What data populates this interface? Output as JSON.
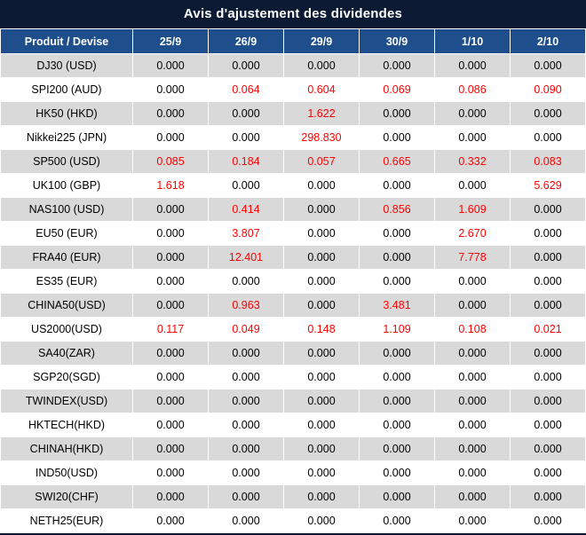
{
  "title": "Avis d'ajustement des dividendes",
  "chart_data": {
    "type": "table",
    "title": "Avis d'ajustement des dividendes",
    "columns": [
      "Produit / Devise",
      "25/9",
      "26/9",
      "29/9",
      "30/9",
      "1/10",
      "2/10"
    ],
    "rows": [
      {
        "product": "DJ30 (USD)",
        "values": [
          "0.000",
          "0.000",
          "0.000",
          "0.000",
          "0.000",
          "0.000"
        ]
      },
      {
        "product": "SPI200 (AUD)",
        "values": [
          "0.000",
          "0.064",
          "0.604",
          "0.069",
          "0.086",
          "0.090"
        ]
      },
      {
        "product": "HK50 (HKD)",
        "values": [
          "0.000",
          "0.000",
          "1.622",
          "0.000",
          "0.000",
          "0.000"
        ]
      },
      {
        "product": "Nikkei225 (JPN)",
        "values": [
          "0.000",
          "0.000",
          "298.830",
          "0.000",
          "0.000",
          "0.000"
        ]
      },
      {
        "product": "SP500 (USD)",
        "values": [
          "0.085",
          "0.184",
          "0.057",
          "0.665",
          "0.332",
          "0.083"
        ]
      },
      {
        "product": "UK100 (GBP)",
        "values": [
          "1.618",
          "0.000",
          "0.000",
          "0.000",
          "0.000",
          "5.629"
        ]
      },
      {
        "product": "NAS100 (USD)",
        "values": [
          "0.000",
          "0.414",
          "0.000",
          "0.856",
          "1.609",
          "0.000"
        ]
      },
      {
        "product": "EU50 (EUR)",
        "values": [
          "0.000",
          "3.807",
          "0.000",
          "0.000",
          "2.670",
          "0.000"
        ]
      },
      {
        "product": "FRA40 (EUR)",
        "values": [
          "0.000",
          "12.401",
          "0.000",
          "0.000",
          "7.778",
          "0.000"
        ]
      },
      {
        "product": "ES35 (EUR)",
        "values": [
          "0.000",
          "0.000",
          "0.000",
          "0.000",
          "0.000",
          "0.000"
        ]
      },
      {
        "product": "CHINA50(USD)",
        "values": [
          "0.000",
          "0.963",
          "0.000",
          "3.481",
          "0.000",
          "0.000"
        ]
      },
      {
        "product": "US2000(USD)",
        "values": [
          "0.117",
          "0.049",
          "0.148",
          "1.109",
          "0.108",
          "0.021"
        ]
      },
      {
        "product": "SA40(ZAR)",
        "values": [
          "0.000",
          "0.000",
          "0.000",
          "0.000",
          "0.000",
          "0.000"
        ]
      },
      {
        "product": "SGP20(SGD)",
        "values": [
          "0.000",
          "0.000",
          "0.000",
          "0.000",
          "0.000",
          "0.000"
        ]
      },
      {
        "product": "TWINDEX(USD)",
        "values": [
          "0.000",
          "0.000",
          "0.000",
          "0.000",
          "0.000",
          "0.000"
        ]
      },
      {
        "product": "HKTECH(HKD)",
        "values": [
          "0.000",
          "0.000",
          "0.000",
          "0.000",
          "0.000",
          "0.000"
        ]
      },
      {
        "product": "CHINAH(HKD)",
        "values": [
          "0.000",
          "0.000",
          "0.000",
          "0.000",
          "0.000",
          "0.000"
        ]
      },
      {
        "product": "IND50(USD)",
        "values": [
          "0.000",
          "0.000",
          "0.000",
          "0.000",
          "0.000",
          "0.000"
        ]
      },
      {
        "product": "SWI20(CHF)",
        "values": [
          "0.000",
          "0.000",
          "0.000",
          "0.000",
          "0.000",
          "0.000"
        ]
      },
      {
        "product": "NETH25(EUR)",
        "values": [
          "0.000",
          "0.000",
          "0.000",
          "0.000",
          "0.000",
          "0.000"
        ]
      }
    ],
    "value_color_rule": "non-zero values rendered in red, zero values in black",
    "layout": "first row striped grey, alternating grey/white"
  },
  "colors": {
    "title_bg": "#0c1a33",
    "header_bg": "#1f4e8c",
    "stripe_bg": "#d9d9d9",
    "nonzero_red": "#ff0000",
    "header_text": "#ffffff",
    "body_text": "#000000"
  }
}
